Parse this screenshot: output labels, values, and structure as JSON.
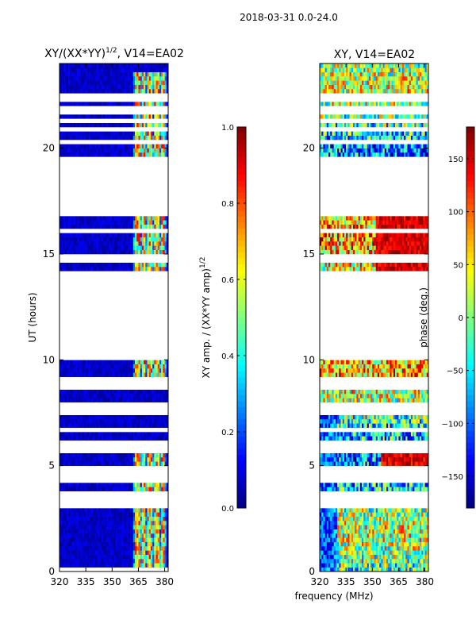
{
  "figure": {
    "suptitle": "2018-03-31 0.0-24.0"
  },
  "chart_data": [
    {
      "type": "heatmap",
      "title": "XY/(XX*YY)",
      "title_exponent": "1/2",
      "title_suffix": ", V14=EA02",
      "xlabel": "",
      "ylabel": "UT (hours)",
      "xlim": [
        320,
        382
      ],
      "ylim": [
        0,
        24
      ],
      "xticks": [
        320,
        335,
        350,
        365,
        380
      ],
      "yticks": [
        0,
        5,
        10,
        15,
        20
      ],
      "colormap": "jet",
      "value_range": [
        0.0,
        1.0
      ],
      "description_of_structure": "mostly low values; high-amplitude stripes between 362 and 380 MHz",
      "bright_bands_mhz": [
        [
          363,
          366
        ],
        [
          367,
          369
        ],
        [
          370,
          373
        ],
        [
          374,
          377
        ],
        [
          378,
          380
        ]
      ],
      "flagged_hours": [
        0.05,
        3.05,
        3.2,
        3.35,
        3.5,
        3.65,
        4.2,
        4.35,
        4.5,
        4.65,
        4.8,
        5.6,
        5.75,
        6.0,
        6.6,
        7.4,
        7.6,
        7.8,
        8.6,
        8.75,
        8.9,
        10.0,
        10.2,
        10.35,
        10.5,
        10.7,
        11.0,
        11.2,
        11.4,
        11.6,
        11.8,
        12.0,
        12.2,
        12.4,
        12.55,
        12.7,
        13.0,
        13.2,
        13.4,
        13.6,
        13.8,
        14.0,
        14.6,
        14.8,
        16.0,
        16.8,
        17.0,
        17.2,
        17.35,
        17.5,
        17.7,
        17.85,
        18.05,
        18.2,
        18.4,
        18.6,
        18.75,
        18.9,
        19.05,
        19.2,
        19.4,
        20.15,
        20.9,
        21.1,
        21.6,
        21.8,
        22.1,
        22.3,
        22.45
      ]
    },
    {
      "type": "heatmap",
      "title": "XY, V14=EA02",
      "xlabel": "frequency (MHz)",
      "ylabel": "",
      "xlim": [
        320,
        382
      ],
      "ylim": [
        0,
        24
      ],
      "xticks": [
        320,
        335,
        350,
        365,
        380
      ],
      "yticks": [
        0,
        5,
        10,
        15,
        20
      ],
      "colormap": "jet",
      "value_range": [
        -180,
        180
      ],
      "description_of_structure": "phase noise across band, horizontal bands with red/orange patches in upper half",
      "flagged_hours": [
        3.05,
        3.2,
        3.35,
        3.5,
        3.65,
        4.2,
        4.35,
        4.5,
        4.65,
        4.8,
        5.6,
        5.75,
        6.0,
        6.6,
        7.4,
        7.6,
        7.8,
        8.6,
        8.75,
        8.9,
        10.0,
        10.2,
        10.35,
        10.5,
        10.7,
        11.0,
        11.2,
        11.4,
        11.6,
        11.8,
        12.0,
        12.2,
        12.4,
        12.55,
        12.7,
        13.0,
        13.2,
        13.4,
        13.6,
        13.8,
        14.0,
        14.6,
        14.8,
        16.0,
        16.8,
        17.0,
        17.2,
        17.35,
        17.5,
        17.7,
        17.85,
        18.05,
        18.2,
        18.4,
        18.6,
        18.75,
        18.9,
        19.05,
        19.2,
        19.4,
        20.15,
        20.9,
        21.1,
        21.6,
        21.8,
        22.1,
        22.3,
        22.45
      ]
    }
  ],
  "colorbars": [
    {
      "label": "XY amp. / (XX*YY amp)",
      "label_exponent": "1/2",
      "range": [
        0.0,
        1.0
      ],
      "ticks": [
        0.0,
        0.2,
        0.4,
        0.6,
        0.8,
        1.0
      ],
      "tick_labels": [
        "0.0",
        "0.2",
        "0.4",
        "0.6",
        "0.8",
        "1.0"
      ]
    },
    {
      "label": "phase (deg.)",
      "range": [
        -180,
        180
      ],
      "ticks": [
        -150,
        -100,
        -50,
        0,
        50,
        100,
        150
      ],
      "tick_labels": [
        "−150",
        "−100",
        "−50",
        "0",
        "50",
        "100",
        "150"
      ]
    }
  ]
}
